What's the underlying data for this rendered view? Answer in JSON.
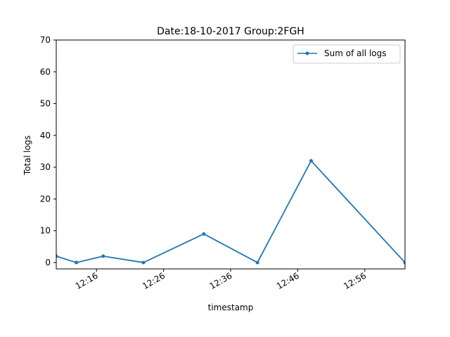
{
  "chart_data": {
    "type": "line",
    "title": "Date:18-10-2017  Group:2FGH",
    "xlabel": "timestamp",
    "ylabel": "Total logs",
    "x_unit": "time (HH:MM)",
    "xlim": [
      "12:10:00",
      "12:62:00"
    ],
    "x_ticks": [
      "12:16",
      "12:26",
      "12:36",
      "12:46",
      "12:56"
    ],
    "ylim": [
      -2,
      70
    ],
    "y_ticks": [
      0,
      10,
      20,
      30,
      40,
      50,
      60,
      70
    ],
    "grid": false,
    "legend_position": "top-right",
    "series": [
      {
        "name": "Sum of all logs",
        "color": "#1f77b4",
        "marker": "point",
        "x": [
          "12:10",
          "12:13",
          "12:17",
          "12:23",
          "12:32",
          "12:40",
          "12:48",
          "13:02"
        ],
        "y": [
          2,
          0,
          2,
          0,
          9,
          0,
          32,
          0
        ]
      }
    ]
  }
}
